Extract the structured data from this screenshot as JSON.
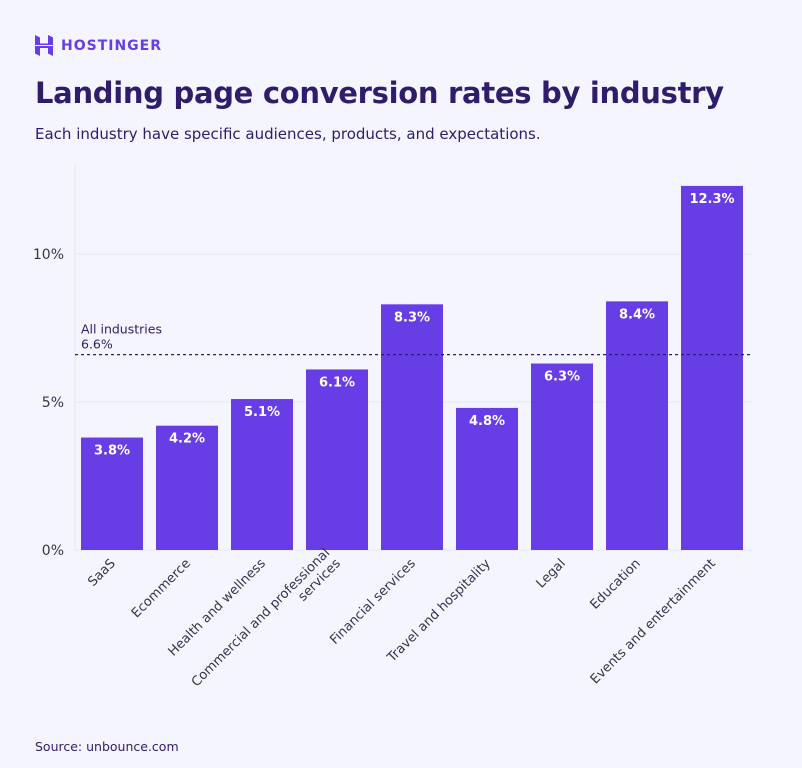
{
  "brand": {
    "name": "HOSTINGER",
    "color": "#673de6",
    "icon": "hostinger-logo-icon"
  },
  "title": "Landing page conversion rates by industry",
  "subtitle": "Each industry have specific audiences, products, and expectations.",
  "source": "Source: unbounce.com",
  "chart_data": {
    "type": "bar",
    "categories": [
      "SaaS",
      "Ecommerce",
      "Health and wellness",
      "Commercial and professional services",
      "Financial services",
      "Travel and hospitality",
      "Legal",
      "Education",
      "Events and entertainment"
    ],
    "category_label_lines": [
      [
        "SaaS"
      ],
      [
        "Ecommerce"
      ],
      [
        "Health and wellness"
      ],
      [
        "Commercial and professional",
        "services"
      ],
      [
        "Financial services"
      ],
      [
        "Travel and hospitality"
      ],
      [
        "Legal"
      ],
      [
        "Education"
      ],
      [
        "Events and entertainment"
      ]
    ],
    "values": [
      3.8,
      4.2,
      5.1,
      6.1,
      8.3,
      4.8,
      6.3,
      8.4,
      12.3
    ],
    "data_labels": [
      "3.8%",
      "4.2%",
      "5.1%",
      "6.1%",
      "8.3%",
      "4.8%",
      "6.3%",
      "8.4%",
      "12.3%"
    ],
    "ylim": [
      0,
      13
    ],
    "yticks": [
      0,
      5,
      10
    ],
    "ytick_labels": [
      "0%",
      "5%",
      "10%"
    ],
    "grid": true,
    "bar_color": "#673de6",
    "reference_line": {
      "value": 6.6,
      "label": "All industries",
      "value_label": "6.6%",
      "style": "dashed"
    },
    "xlabel": "",
    "ylabel": ""
  }
}
